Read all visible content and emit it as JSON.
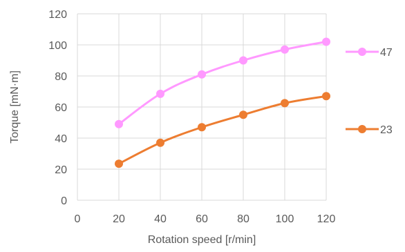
{
  "chart_data": {
    "type": "line",
    "xlabel": "Rotation speed [r/min]",
    "ylabel": "Torque [mN·m]",
    "x": [
      20,
      40,
      60,
      80,
      100,
      120
    ],
    "xlim": [
      0,
      120
    ],
    "ylim": [
      0,
      120
    ],
    "xticks": [
      0,
      20,
      40,
      60,
      80,
      100,
      120
    ],
    "yticks": [
      0,
      20,
      40,
      60,
      80,
      100,
      120
    ],
    "grid": true,
    "legend_position": "right",
    "series": [
      {
        "name": "47",
        "color": "#FF99FF",
        "values": [
          49,
          68.5,
          81,
          90,
          97,
          102
        ]
      },
      {
        "name": "23",
        "color": "#ED7D31",
        "values": [
          23.5,
          37,
          47,
          55,
          62.5,
          67
        ]
      }
    ]
  }
}
